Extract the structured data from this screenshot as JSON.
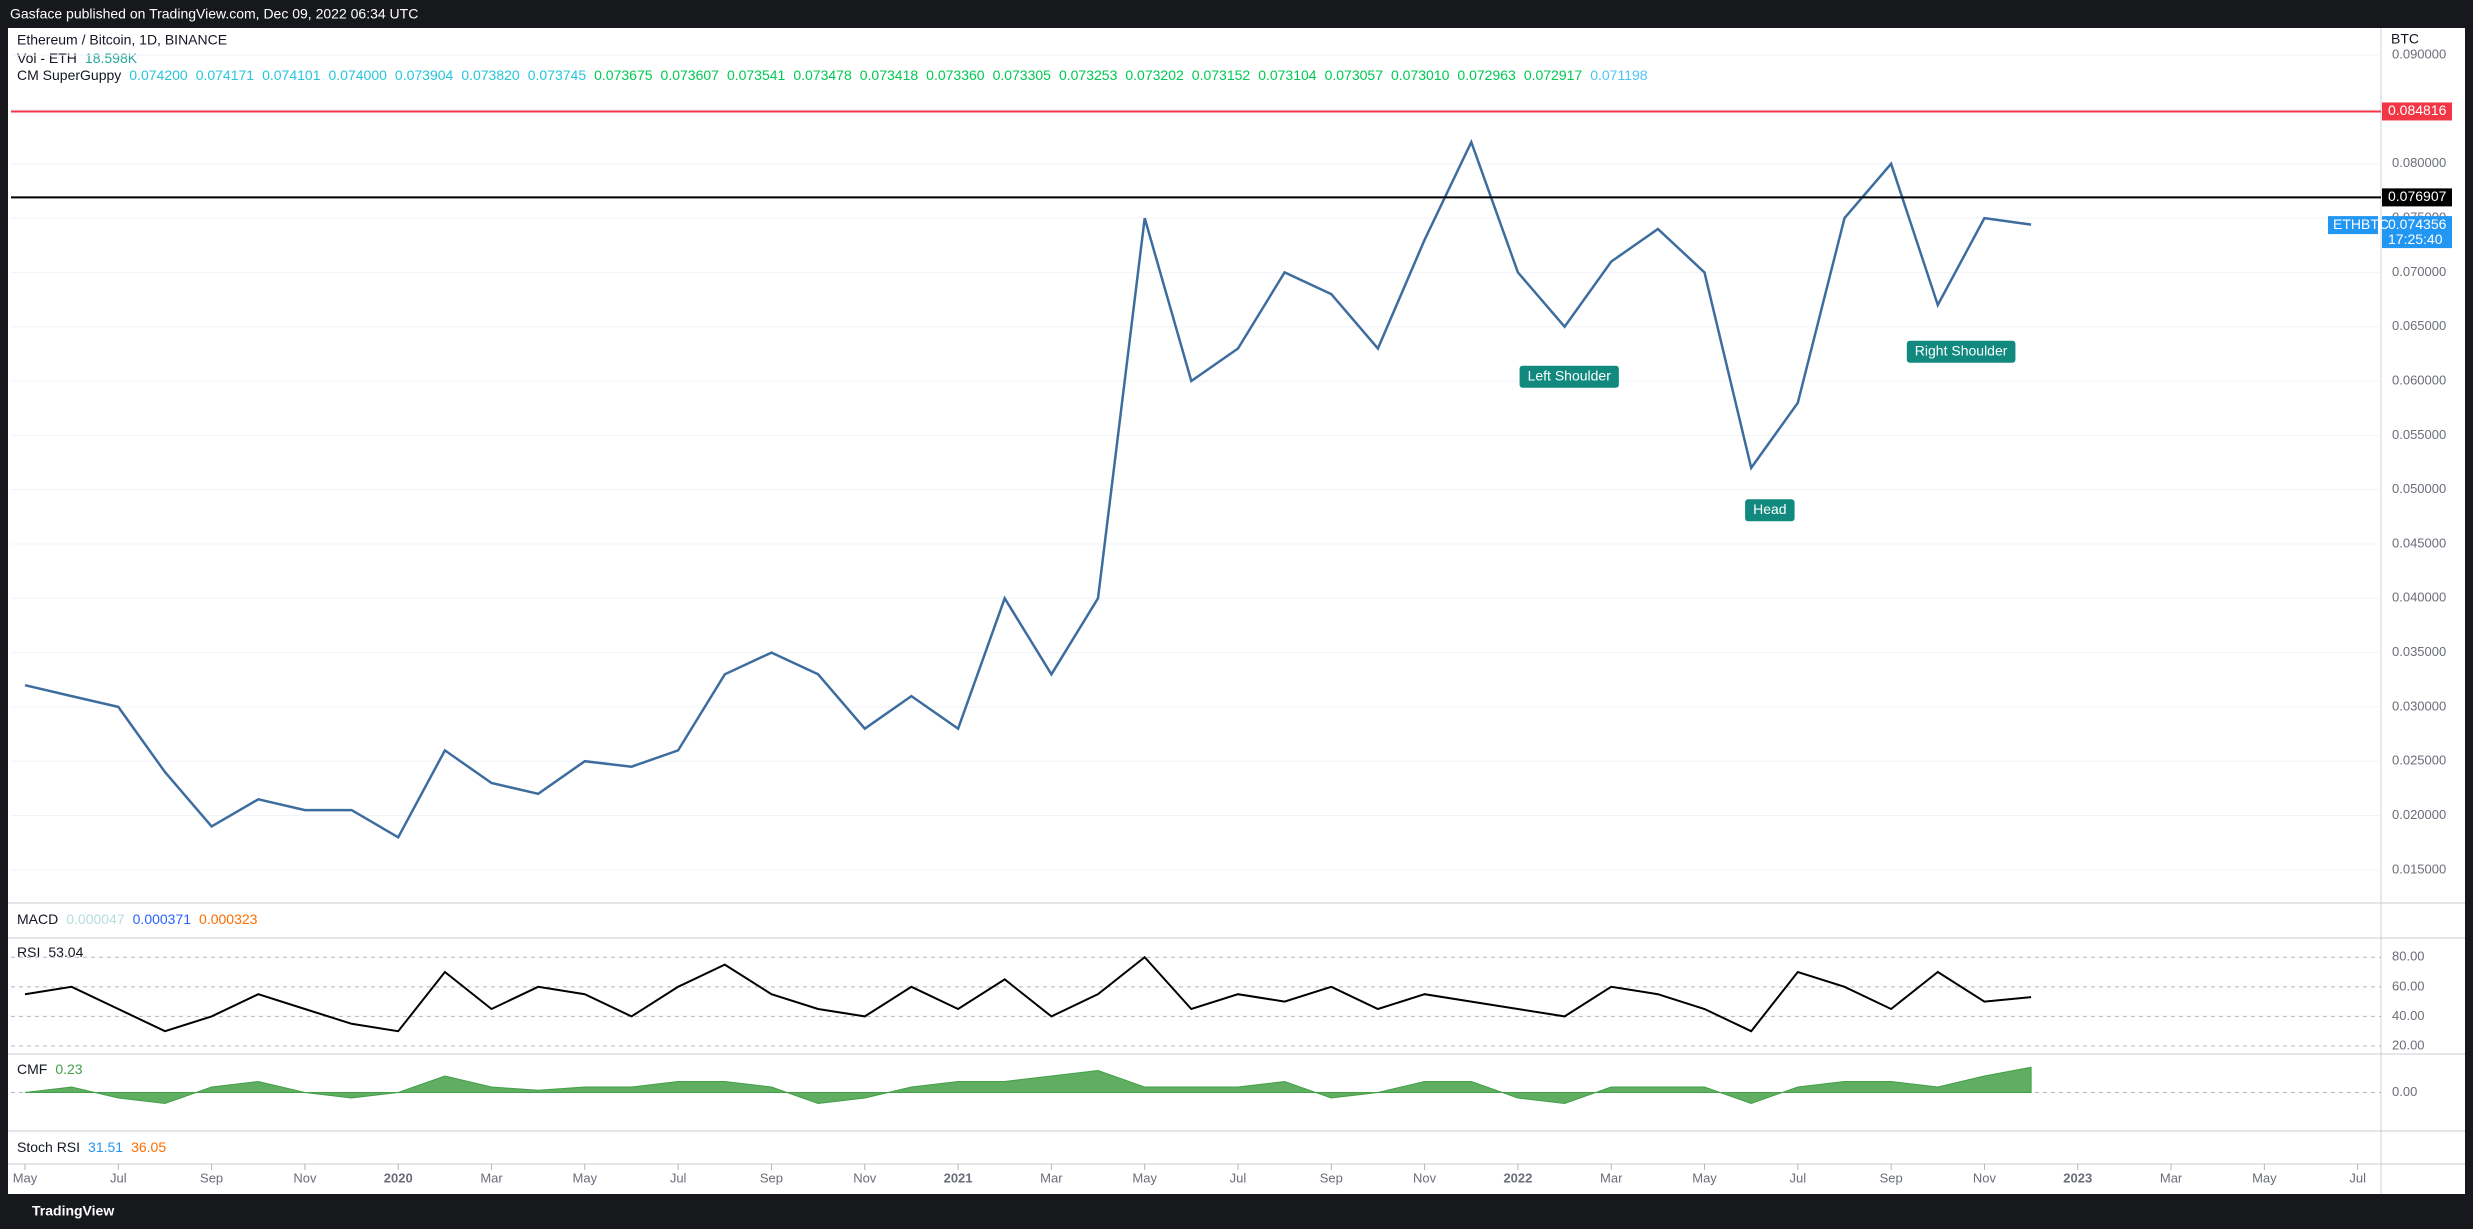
{
  "header": {
    "published": "Gasface published on TradingView.com, Dec 09, 2022 06:34 UTC",
    "brand": "TradingView"
  },
  "chart_data": [
    {
      "type": "line",
      "title": "Ethereum / Bitcoin, 1D, BINANCE",
      "currency": "BTC",
      "legend": {
        "vol_name": "Vol - ETH",
        "vol_value": "18.598K",
        "guppy_name": "CM SuperGuppy",
        "guppy": [
          {
            "label": "0.074200",
            "color": "#26c6da"
          },
          {
            "label": "0.074171",
            "color": "#26c6da"
          },
          {
            "label": "0.074101",
            "color": "#26c6da"
          },
          {
            "label": "0.074000",
            "color": "#26c6da"
          },
          {
            "label": "0.073904",
            "color": "#26c6da"
          },
          {
            "label": "0.073820",
            "color": "#26c6da"
          },
          {
            "label": "0.073745",
            "color": "#26c6da"
          },
          {
            "label": "0.073675",
            "color": "#00c853"
          },
          {
            "label": "0.073607",
            "color": "#00c853"
          },
          {
            "label": "0.073541",
            "color": "#00c853"
          },
          {
            "label": "0.073478",
            "color": "#00c853"
          },
          {
            "label": "0.073418",
            "color": "#00c853"
          },
          {
            "label": "0.073360",
            "color": "#00c853"
          },
          {
            "label": "0.073305",
            "color": "#00c853"
          },
          {
            "label": "0.073253",
            "color": "#00c853"
          },
          {
            "label": "0.073202",
            "color": "#00c853"
          },
          {
            "label": "0.073152",
            "color": "#00c853"
          },
          {
            "label": "0.073104",
            "color": "#00c853"
          },
          {
            "label": "0.073057",
            "color": "#00c853"
          },
          {
            "label": "0.073010",
            "color": "#00c853"
          },
          {
            "label": "0.072963",
            "color": "#00c853"
          },
          {
            "label": "0.072917",
            "color": "#00c853"
          },
          {
            "label": "0.071198",
            "color": "#4fc3f7"
          }
        ]
      },
      "x": [
        0,
        1,
        2,
        3,
        4,
        5,
        6,
        7,
        8,
        9,
        10,
        11,
        12,
        13,
        14,
        15,
        16,
        17,
        18,
        19,
        20,
        21,
        22,
        23,
        24,
        25,
        26,
        27,
        28,
        29,
        30,
        31,
        32,
        33,
        34,
        35,
        36,
        37,
        38,
        39,
        40,
        41,
        42,
        43
      ],
      "series": [
        {
          "name": "ETHBTC",
          "color": "#3d6d9e",
          "values": [
            0.032,
            0.031,
            0.03,
            0.024,
            0.019,
            0.0215,
            0.0205,
            0.0205,
            0.018,
            0.026,
            0.023,
            0.022,
            0.025,
            0.0245,
            0.026,
            0.033,
            0.035,
            0.033,
            0.028,
            0.031,
            0.028,
            0.04,
            0.033,
            0.04,
            0.075,
            0.06,
            0.063,
            0.07,
            0.068,
            0.063,
            0.073,
            0.082,
            0.07,
            0.065,
            0.071,
            0.074,
            0.07,
            0.052,
            0.058,
            0.075,
            0.08,
            0.067,
            0.075,
            0.0744
          ]
        }
      ],
      "xlim": [
        -0.3,
        50.5
      ],
      "xticks": [
        {
          "value": 0,
          "label": "May"
        },
        {
          "value": 2,
          "label": "Jul"
        },
        {
          "value": 4,
          "label": "Sep"
        },
        {
          "value": 6,
          "label": "Nov"
        },
        {
          "value": 8,
          "label": "2020"
        },
        {
          "value": 10,
          "label": "Mar"
        },
        {
          "value": 12,
          "label": "May"
        },
        {
          "value": 14,
          "label": "Jul"
        },
        {
          "value": 16,
          "label": "Sep"
        },
        {
          "value": 18,
          "label": "Nov"
        },
        {
          "value": 20,
          "label": "2021"
        },
        {
          "value": 22,
          "label": "Mar"
        },
        {
          "value": 24,
          "label": "May"
        },
        {
          "value": 26,
          "label": "Jul"
        },
        {
          "value": 28,
          "label": "Sep"
        },
        {
          "value": 30,
          "label": "Nov"
        },
        {
          "value": 32,
          "label": "2022"
        },
        {
          "value": 34,
          "label": "Mar"
        },
        {
          "value": 36,
          "label": "May"
        },
        {
          "value": 38,
          "label": "Jul"
        },
        {
          "value": 40,
          "label": "Sep"
        },
        {
          "value": 42,
          "label": "Nov"
        },
        {
          "value": 44,
          "label": "2023"
        },
        {
          "value": 46,
          "label": "Mar"
        },
        {
          "value": 48,
          "label": "May"
        },
        {
          "value": 50,
          "label": "Jul"
        }
      ],
      "ylim": [
        0.01195,
        0.0925
      ],
      "yticks": [
        {
          "value": 0.015,
          "label": "0.015000"
        },
        {
          "value": 0.02,
          "label": "0.020000"
        },
        {
          "value": 0.025,
          "label": "0.025000"
        },
        {
          "value": 0.03,
          "label": "0.030000"
        },
        {
          "value": 0.035,
          "label": "0.035000"
        },
        {
          "value": 0.04,
          "label": "0.040000"
        },
        {
          "value": 0.045,
          "label": "0.045000"
        },
        {
          "value": 0.05,
          "label": "0.050000"
        },
        {
          "value": 0.055,
          "label": "0.055000"
        },
        {
          "value": 0.06,
          "label": "0.060000"
        },
        {
          "value": 0.065,
          "label": "0.065000"
        },
        {
          "value": 0.07,
          "label": "0.070000"
        },
        {
          "value": 0.075,
          "label": "0.075000"
        },
        {
          "value": 0.08,
          "label": "0.080000"
        },
        {
          "value": 0.085,
          "label": "0.085000"
        },
        {
          "value": 0.09,
          "label": "0.090000"
        }
      ],
      "hlines": [
        {
          "value": 0.084816,
          "label": "0.084816",
          "color": "#f23645"
        },
        {
          "value": 0.076907,
          "label": "0.076907",
          "color": "#000000"
        }
      ],
      "price_label": {
        "name": "ETHBTC",
        "value": 0.074356,
        "label": "0.074356",
        "countdown": "17:25:40",
        "color": "#2196f3"
      },
      "annotations": [
        {
          "text": "Left Shoulder",
          "x": 33.1,
          "y": 0.0604
        },
        {
          "text": "Head",
          "x": 37.4,
          "y": 0.0481
        },
        {
          "text": "Right Shoulder",
          "x": 41.5,
          "y": 0.0627
        }
      ]
    },
    {
      "type": "line",
      "title": "RSI",
      "value": "53.04",
      "x": [
        0,
        1,
        2,
        3,
        4,
        5,
        6,
        7,
        8,
        9,
        10,
        11,
        12,
        13,
        14,
        15,
        16,
        17,
        18,
        19,
        20,
        21,
        22,
        23,
        24,
        25,
        26,
        27,
        28,
        29,
        30,
        31,
        32,
        33,
        34,
        35,
        36,
        37,
        38,
        39,
        40,
        41,
        42,
        43
      ],
      "series": [
        {
          "name": "RSI",
          "color": "#000000",
          "values": [
            55,
            60,
            45,
            30,
            40,
            55,
            45,
            35,
            30,
            70,
            45,
            60,
            55,
            40,
            60,
            75,
            55,
            45,
            40,
            60,
            45,
            65,
            40,
            55,
            80,
            45,
            55,
            50,
            60,
            45,
            55,
            50,
            45,
            40,
            60,
            55,
            45,
            30,
            70,
            60,
            45,
            70,
            50,
            53.04
          ]
        }
      ],
      "xlim": [
        -0.3,
        50.5
      ],
      "ylim": [
        14.6,
        93
      ],
      "yticks": [
        {
          "value": 20,
          "label": "20.00"
        },
        {
          "value": 40,
          "label": "40.00"
        },
        {
          "value": 60,
          "label": "60.00"
        },
        {
          "value": 80,
          "label": "80.00"
        }
      ]
    },
    {
      "type": "area",
      "title": "CMF",
      "value": "0.23",
      "x": [
        0,
        1,
        2,
        3,
        4,
        5,
        6,
        7,
        8,
        9,
        10,
        11,
        12,
        13,
        14,
        15,
        16,
        17,
        18,
        19,
        20,
        21,
        22,
        23,
        24,
        25,
        26,
        27,
        28,
        29,
        30,
        31,
        32,
        33,
        34,
        35,
        36,
        37,
        38,
        39,
        40,
        41,
        42,
        43
      ],
      "series": [
        {
          "name": "CMF",
          "color": "#43a047",
          "values": [
            0,
            0.05,
            -0.05,
            -0.1,
            0.05,
            0.1,
            0,
            -0.05,
            0,
            0.15,
            0.05,
            0.02,
            0.05,
            0.05,
            0.1,
            0.1,
            0.05,
            -0.1,
            -0.05,
            0.05,
            0.1,
            0.1,
            0.15,
            0.2,
            0.05,
            0.05,
            0.05,
            0.1,
            -0.05,
            0,
            0.1,
            0.1,
            -0.05,
            -0.1,
            0.05,
            0.05,
            0.05,
            -0.1,
            0.05,
            0.1,
            0.1,
            0.05,
            0.15,
            0.23
          ]
        }
      ],
      "xlim": [
        -0.3,
        50.5
      ],
      "ylim": [
        -0.35,
        0.35
      ],
      "yticks": [
        {
          "value": 0,
          "label": "0.00"
        }
      ]
    }
  ],
  "macd": {
    "title": "MACD",
    "values": [
      "0.000047",
      "0.000371",
      "0.000323"
    ],
    "colors": [
      "#b2dfdb",
      "#2962ff",
      "#ff6d00"
    ]
  },
  "stoch": {
    "title": "Stoch RSI",
    "values": [
      "31.51",
      "36.05"
    ],
    "colors": [
      "#2196f3",
      "#ff6d00"
    ]
  }
}
